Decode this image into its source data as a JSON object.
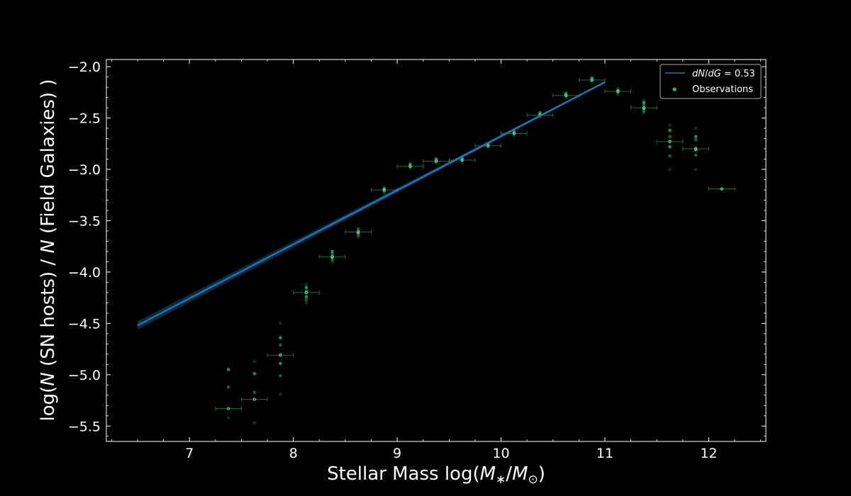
{
  "chart_data": {
    "type": "scatter",
    "xlabel_parts": [
      "Stellar Mass log(",
      "M",
      "∗",
      "/",
      "M",
      "⊙",
      ")"
    ],
    "ylabel_parts": [
      "log(",
      "N",
      " (SN hosts) / ",
      "N",
      " (Field Galaxies) )"
    ],
    "xlim": [
      6.2,
      12.55
    ],
    "ylim": [
      -5.65,
      -1.93
    ],
    "xticks": [
      7,
      8,
      9,
      10,
      11,
      12
    ],
    "xtick_labels": [
      "7",
      "8",
      "9",
      "10",
      "11",
      "12"
    ],
    "yticks": [
      -5.5,
      -5.0,
      -4.5,
      -4.0,
      -3.5,
      -3.0,
      -2.5,
      -2.0
    ],
    "ytick_labels": [
      "−5.5",
      "−5.0",
      "−4.5",
      "−4.0",
      "−3.5",
      "−3.0",
      "−2.5",
      "−2.0"
    ],
    "grid": false,
    "legend_position": "top-right",
    "fit_line": {
      "name": "dN/dG = 0.53",
      "legend_label_parts": [
        "dN",
        "/",
        "dG",
        " = 0.53"
      ],
      "x": [
        6.5,
        11.0
      ],
      "y": [
        -4.52,
        -2.15
      ],
      "color": "#1f77b4"
    },
    "observations": {
      "name": "Observations",
      "color": "#1fc27a",
      "x": [
        7.375,
        7.625,
        7.875,
        8.125,
        8.375,
        8.625,
        8.875,
        9.125,
        9.375,
        9.625,
        9.875,
        10.125,
        10.375,
        10.625,
        10.875,
        11.125,
        11.375,
        11.625,
        11.875,
        12.125
      ],
      "y": [
        -5.33,
        -5.24,
        -4.81,
        -4.2,
        -3.85,
        -3.61,
        -3.2,
        -2.97,
        -2.92,
        -2.91,
        -2.77,
        -2.65,
        -2.47,
        -2.28,
        -2.13,
        -2.24,
        -2.4,
        -2.73,
        -2.8,
        -3.19
      ],
      "xerr": 0.125,
      "spread": [
        [
          -5.42,
          -5.12,
          -4.95
        ],
        [
          -5.47,
          -5.17,
          -4.99,
          -4.87
        ],
        [
          -5.19,
          -5.01,
          -4.89,
          -4.8,
          -4.71,
          -4.64,
          -4.5
        ],
        [
          -4.3,
          -4.27,
          -4.24,
          -4.21,
          -4.18,
          -4.15,
          -4.12
        ],
        [
          -3.9,
          -3.88,
          -3.86,
          -3.84,
          -3.82,
          -3.8
        ],
        [
          -3.66,
          -3.64,
          -3.62,
          -3.6,
          -3.58
        ],
        [
          -3.23,
          -3.21,
          -3.19,
          -3.17
        ],
        [
          -2.99,
          -2.97,
          -2.95
        ],
        [
          -2.94,
          -2.92,
          -2.9
        ],
        [
          -2.93,
          -2.91,
          -2.89
        ],
        [
          -2.79,
          -2.77,
          -2.75
        ],
        [
          -2.67,
          -2.65,
          -2.63
        ],
        [
          -2.49,
          -2.47,
          -2.45
        ],
        [
          -2.3,
          -2.28,
          -2.26
        ],
        [
          -2.15,
          -2.13,
          -2.11
        ],
        [
          -2.27,
          -2.25,
          -2.23,
          -2.21
        ],
        [
          -2.45,
          -2.43,
          -2.41,
          -2.39,
          -2.37,
          -2.35,
          -2.33
        ],
        [
          -3.0,
          -2.87,
          -2.78,
          -2.72,
          -2.68,
          -2.62,
          -2.57
        ],
        [
          -3.0,
          -2.86,
          -2.81,
          -2.78,
          -2.71,
          -2.68,
          -2.6
        ],
        [
          -3.19
        ]
      ]
    }
  }
}
